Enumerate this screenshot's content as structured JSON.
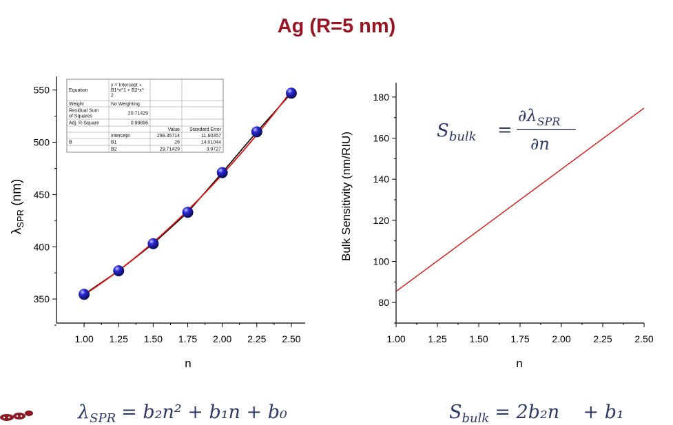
{
  "title": "Ag (R=5 nm)",
  "chart_data": [
    {
      "type": "scatter",
      "xlabel": "n",
      "ylabel_main": "λ",
      "ylabel_sub": "SPR",
      "ylabel_unit": " (nm)",
      "xlim": [
        0.8,
        2.6
      ],
      "ylim": [
        327,
        563
      ],
      "xticks": [
        "1.00",
        "1.25",
        "1.50",
        "1.75",
        "2.00",
        "2.25",
        "2.50"
      ],
      "yticks": [
        "350",
        "400",
        "450",
        "500",
        "550"
      ],
      "series": [
        {
          "x": [
            1.0,
            1.25,
            1.5,
            1.75,
            2.0,
            2.25,
            2.5
          ],
          "y": [
            354.5,
            377,
            403,
            433,
            471,
            510,
            547
          ],
          "marker_color": "#2a2ad6",
          "line_color": "#000000"
        }
      ],
      "fit": {
        "intercept": 298.35714,
        "b1": 26,
        "b2": 29.71429,
        "color": "#e01010"
      },
      "fit_table": {
        "rows": [
          [
            "Equation",
            "y = Intercept +\nB1*x^1 + B2*x^\n2",
            "",
            ""
          ],
          [
            "Weight",
            "No Weighting",
            "",
            ""
          ],
          [
            "Residual Sum\nof Squares",
            "20.71429",
            "",
            ""
          ],
          [
            "Adj. R-Square",
            "0.99896",
            "",
            ""
          ],
          [
            "",
            "",
            "Value",
            "Standard Error"
          ],
          [
            "",
            "Intercept",
            "298.35714",
            "11.60357"
          ],
          [
            "B",
            "B1",
            "26",
            "14.01044"
          ],
          [
            "",
            "B2",
            "29.71429",
            "3.9727"
          ]
        ]
      }
    },
    {
      "type": "line",
      "xlabel": "n",
      "ylabel": "Bulk Sensitivity (nm/RIU)",
      "xlim": [
        1.0,
        2.5
      ],
      "ylim": [
        70,
        187
      ],
      "xticks": [
        "1.00",
        "1.25",
        "1.50",
        "1.75",
        "2.00",
        "2.25",
        "2.50"
      ],
      "yticks": [
        "80",
        "100",
        "120",
        "140",
        "160",
        "180"
      ],
      "series": [
        {
          "x": [
            1.0,
            2.5
          ],
          "y": [
            85.4,
            174.6
          ],
          "color": "#e01010"
        }
      ]
    }
  ],
  "equations": {
    "sbulk_def_lhs": "S",
    "sbulk_def_lhs_sub": "bulk",
    "sbulk_def_eq": "=",
    "sbulk_def_num": "∂λ",
    "sbulk_def_num_sub": "SPR",
    "sbulk_def_den": "∂n",
    "lambda_fit_lhs": "λ",
    "lambda_fit_lhs_sub": "SPR",
    "lambda_fit_rhs": "= b₂n² + b₁n + b₀",
    "sbulk_fit_lhs": "S",
    "sbulk_fit_lhs_sub": "bulk",
    "sbulk_fit_rhs": "= 2b₂n    + b₁"
  },
  "colors": {
    "title": "#9b1422",
    "equation": "#2b3a67",
    "logo": "#8b1a24"
  }
}
